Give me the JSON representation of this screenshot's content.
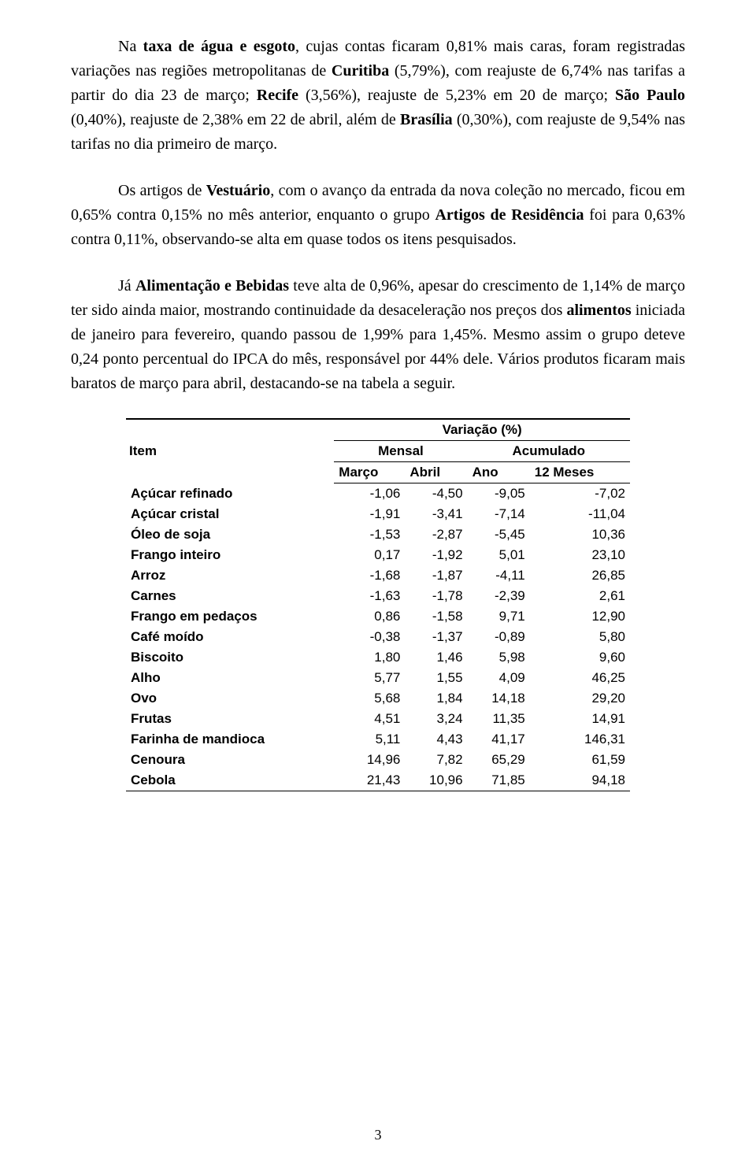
{
  "para1_parts": [
    {
      "t": "Na "
    },
    {
      "t": "taxa de água e esgoto",
      "b": true
    },
    {
      "t": ", cujas contas ficaram 0,81%  mais caras, foram registradas variações nas regiões metropolitanas de "
    },
    {
      "t": "Curitiba",
      "b": true
    },
    {
      "t": " (5,79%), com reajuste de 6,74% nas tarifas a partir do dia 23 de março; "
    },
    {
      "t": "Recife",
      "b": true
    },
    {
      "t": " (3,56%), reajuste de 5,23% em 20 de março; "
    },
    {
      "t": "São Paulo",
      "b": true
    },
    {
      "t": " (0,40%), reajuste de 2,38% em 22 de abril, além de "
    },
    {
      "t": "Brasília",
      "b": true
    },
    {
      "t": " (0,30%), com reajuste de 9,54% nas tarifas no dia primeiro de março."
    }
  ],
  "para2_parts": [
    {
      "t": "Os artigos de "
    },
    {
      "t": "Vestuário",
      "b": true
    },
    {
      "t": ", com o avanço da entrada da nova coleção no mercado, ficou em 0,65% contra 0,15% no mês anterior, enquanto o grupo "
    },
    {
      "t": "Artigos de Residência",
      "b": true
    },
    {
      "t": "  foi para 0,63% contra 0,11%, observando-se alta em quase todos os itens pesquisados."
    }
  ],
  "para3_parts": [
    {
      "t": "Já "
    },
    {
      "t": "Alimentação e Bebidas",
      "b": true
    },
    {
      "t": " teve alta de 0,96%, apesar do crescimento de 1,14% de março ter sido ainda maior, mostrando continuidade da desaceleração nos preços dos "
    },
    {
      "t": "alimentos",
      "b": true
    },
    {
      "t": " iniciada de janeiro para fevereiro, quando passou de 1,99% para 1,45%. Mesmo assim o grupo deteve 0,24 ponto percentual do IPCA do mês, responsável por 44% dele. Vários produtos ficaram mais baratos de março para abril, destacando-se na tabela a seguir."
    }
  ],
  "table": {
    "header": {
      "item": "Item",
      "variacao": "Variação (%)",
      "mensal": "Mensal",
      "acumulado": "Acumulado",
      "marco": "Março",
      "abril": "Abril",
      "ano": "Ano",
      "meses12": "12 Meses"
    },
    "rows": [
      {
        "item": "Açúcar refinado",
        "marco": "-1,06",
        "abril": "-4,50",
        "ano": "-9,05",
        "m12": "-7,02"
      },
      {
        "item": "Açúcar cristal",
        "marco": "-1,91",
        "abril": "-3,41",
        "ano": "-7,14",
        "m12": "-11,04"
      },
      {
        "item": "Óleo de soja",
        "marco": "-1,53",
        "abril": "-2,87",
        "ano": "-5,45",
        "m12": "10,36"
      },
      {
        "item": "Frango inteiro",
        "marco": "0,17",
        "abril": "-1,92",
        "ano": "5,01",
        "m12": "23,10"
      },
      {
        "item": "Arroz",
        "marco": "-1,68",
        "abril": "-1,87",
        "ano": "-4,11",
        "m12": "26,85"
      },
      {
        "item": "Carnes",
        "marco": "-1,63",
        "abril": "-1,78",
        "ano": "-2,39",
        "m12": "2,61"
      },
      {
        "item": "Frango em pedaços",
        "marco": "0,86",
        "abril": "-1,58",
        "ano": "9,71",
        "m12": "12,90"
      },
      {
        "item": "Café moído",
        "marco": "-0,38",
        "abril": "-1,37",
        "ano": "-0,89",
        "m12": "5,80"
      },
      {
        "item": "Biscoito",
        "marco": "1,80",
        "abril": "1,46",
        "ano": "5,98",
        "m12": "9,60"
      },
      {
        "item": "Alho",
        "marco": "5,77",
        "abril": "1,55",
        "ano": "4,09",
        "m12": "46,25"
      },
      {
        "item": "Ovo",
        "marco": "5,68",
        "abril": "1,84",
        "ano": "14,18",
        "m12": "29,20"
      },
      {
        "item": "Frutas",
        "marco": "4,51",
        "abril": "3,24",
        "ano": "11,35",
        "m12": "14,91"
      },
      {
        "item": "Farinha de mandioca",
        "marco": "5,11",
        "abril": "4,43",
        "ano": "41,17",
        "m12": "146,31"
      },
      {
        "item": "Cenoura",
        "marco": "14,96",
        "abril": "7,82",
        "ano": "65,29",
        "m12": "61,59"
      },
      {
        "item": "Cebola",
        "marco": "21,43",
        "abril": "10,96",
        "ano": "71,85",
        "m12": "94,18"
      }
    ]
  },
  "page_number": "3"
}
